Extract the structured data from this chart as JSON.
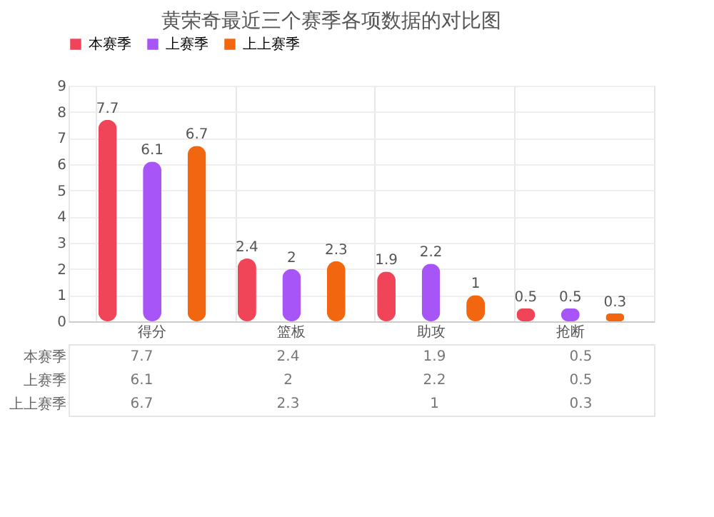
{
  "chart_data": {
    "type": "bar",
    "title": "黄荣奇最近三个赛季各项数据的对比图",
    "categories": [
      "得分",
      "篮板",
      "助攻",
      "抢断"
    ],
    "series": [
      {
        "name": "本赛季",
        "color": "#f04458",
        "values": [
          7.7,
          2.4,
          1.9,
          0.5
        ]
      },
      {
        "name": "上赛季",
        "color": "#a855f7",
        "values": [
          6.1,
          2,
          2.2,
          0.5
        ]
      },
      {
        "name": "上上赛季",
        "color": "#f2660f",
        "values": [
          6.7,
          2.3,
          1,
          0.3
        ]
      }
    ],
    "ylim": [
      0,
      9
    ],
    "yticks": [
      0,
      1,
      2,
      3,
      4,
      5,
      6,
      7,
      8,
      9
    ],
    "grid": true,
    "legend": "top",
    "data_labels": true,
    "annotations": [
      "7.7",
      "2.4",
      "1.9",
      "0.5",
      "6.1",
      "2",
      "2.2",
      "0.5",
      "6.7",
      "2.3",
      "1",
      "0.3"
    ]
  }
}
